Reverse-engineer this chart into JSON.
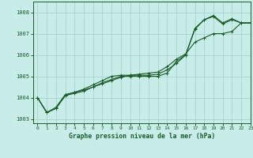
{
  "title": "Graphe pression niveau de la mer (hPa)",
  "background_color": "#c8ece8",
  "grid_color": "#a8d4cc",
  "line_color": "#1a5c2a",
  "ylim": [
    1002.8,
    1008.5
  ],
  "xlim": [
    -0.5,
    23
  ],
  "yticks": [
    1003,
    1004,
    1005,
    1006,
    1007,
    1008
  ],
  "xticks": [
    0,
    1,
    2,
    3,
    4,
    5,
    6,
    7,
    8,
    9,
    10,
    11,
    12,
    13,
    14,
    15,
    16,
    17,
    18,
    19,
    20,
    21,
    22,
    23
  ],
  "series": [
    {
      "x": [
        0,
        1,
        2,
        3,
        4,
        5,
        6,
        7,
        8,
        9,
        10,
        11,
        12,
        13,
        14,
        15,
        16,
        17,
        18,
        19,
        20,
        21,
        22,
        23
      ],
      "y": [
        1004.0,
        1003.3,
        1003.5,
        1004.1,
        1004.2,
        1004.3,
        1004.5,
        1004.7,
        1004.85,
        1005.0,
        1005.0,
        1005.0,
        1005.0,
        1005.0,
        1005.15,
        1005.7,
        1006.0,
        1007.2,
        1007.65,
        1007.8,
        1007.45,
        1007.65,
        1007.5,
        1007.5
      ]
    },
    {
      "x": [
        0,
        1,
        2,
        3,
        4,
        5,
        6,
        7,
        8,
        9,
        10,
        11,
        12,
        13,
        14,
        15,
        16,
        17,
        18,
        19,
        20,
        21,
        22,
        23
      ],
      "y": [
        1004.0,
        1003.3,
        1003.5,
        1004.1,
        1004.25,
        1004.4,
        1004.6,
        1004.8,
        1005.0,
        1005.05,
        1005.05,
        1005.05,
        1005.05,
        1005.1,
        1005.3,
        1005.6,
        1006.0,
        1007.25,
        1007.65,
        1007.85,
        1007.5,
        1007.7,
        1007.5,
        1007.5
      ]
    },
    {
      "x": [
        0,
        1,
        2,
        3,
        4,
        5,
        6,
        7,
        8,
        9,
        10,
        11,
        12,
        13,
        14,
        15,
        16,
        17,
        18,
        19,
        20,
        21,
        22,
        23
      ],
      "y": [
        1004.0,
        1003.3,
        1003.55,
        1004.15,
        1004.25,
        1004.35,
        1004.5,
        1004.65,
        1004.8,
        1004.95,
        1005.05,
        1005.1,
        1005.15,
        1005.2,
        1005.45,
        1005.8,
        1006.05,
        1006.6,
        1006.8,
        1007.0,
        1007.0,
        1007.1,
        1007.5,
        1007.5
      ]
    }
  ]
}
